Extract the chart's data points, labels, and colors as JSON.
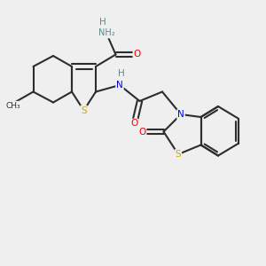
{
  "bg_color": "#efefef",
  "atom_colors": {
    "C": "#2d2d2d",
    "H": "#5a8a8a",
    "N": "#0000ee",
    "O": "#ee0000",
    "S": "#ccaa00"
  },
  "bond_color": "#2d2d2d",
  "bond_lw": 1.5,
  "fontsize": 7.5
}
